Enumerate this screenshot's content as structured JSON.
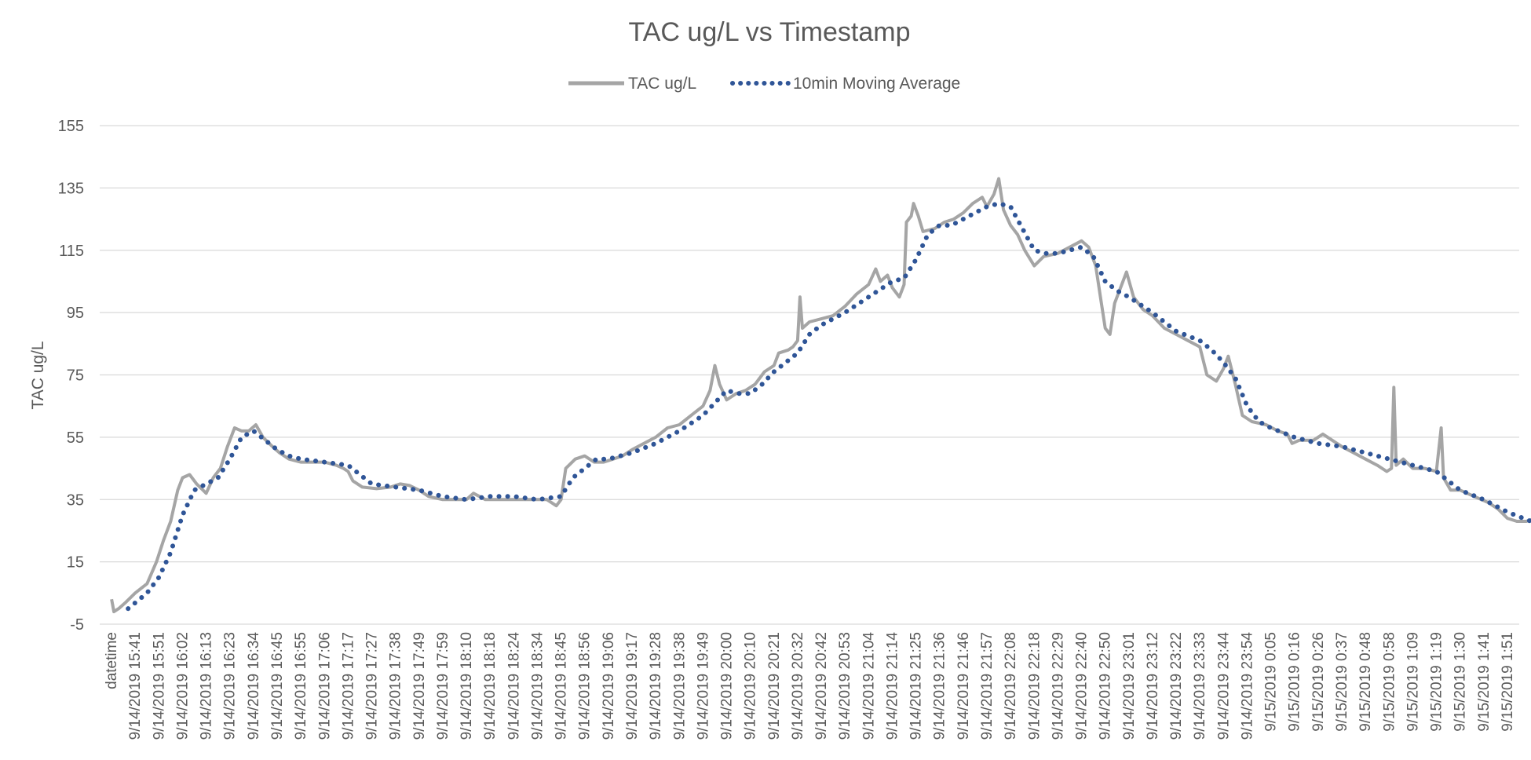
{
  "chart_data": {
    "type": "line",
    "title": "TAC ug/L vs Timestamp",
    "xlabel": "",
    "ylabel": "TAC ug/L",
    "ylim": [
      -5,
      155
    ],
    "yticks": [
      "-5",
      "15",
      "35",
      "55",
      "75",
      "95",
      "115",
      "135",
      "155"
    ],
    "grid": true,
    "legend_position": "top",
    "categories": [
      "datetime",
      "9/14/2019 15:41",
      "9/14/2019 15:51",
      "9/14/2019 16:02",
      "9/14/2019 16:13",
      "9/14/2019 16:23",
      "9/14/2019 16:34",
      "9/14/2019 16:45",
      "9/14/2019 16:55",
      "9/14/2019 17:06",
      "9/14/2019 17:17",
      "9/14/2019 17:27",
      "9/14/2019 17:38",
      "9/14/2019 17:49",
      "9/14/2019 17:59",
      "9/14/2019 18:10",
      "9/14/2019 18:18",
      "9/14/2019 18:24",
      "9/14/2019 18:34",
      "9/14/2019 18:45",
      "9/14/2019 18:56",
      "9/14/2019 19:06",
      "9/14/2019 19:17",
      "9/14/2019 19:28",
      "9/14/2019 19:38",
      "9/14/2019 19:49",
      "9/14/2019 20:00",
      "9/14/2019 20:10",
      "9/14/2019 20:21",
      "9/14/2019 20:32",
      "9/14/2019 20:42",
      "9/14/2019 20:53",
      "9/14/2019 21:04",
      "9/14/2019 21:14",
      "9/14/2019 21:25",
      "9/14/2019 21:36",
      "9/14/2019 21:46",
      "9/14/2019 21:57",
      "9/14/2019 22:08",
      "9/14/2019 22:18",
      "9/14/2019 22:29",
      "9/14/2019 22:40",
      "9/14/2019 22:50",
      "9/14/2019 23:01",
      "9/14/2019 23:12",
      "9/14/2019 23:22",
      "9/14/2019 23:33",
      "9/14/2019 23:44",
      "9/14/2019 23:54",
      "9/15/2019 0:05",
      "9/15/2019 0:16",
      "9/15/2019 0:26",
      "9/15/2019 0:37",
      "9/15/2019 0:48",
      "9/15/2019 0:58",
      "9/15/2019 1:09",
      "9/15/2019 1:19",
      "9/15/2019 1:30",
      "9/15/2019 1:41",
      "9/15/2019 1:51"
    ],
    "series": [
      {
        "name": "TAC ug/L",
        "color": "#a5a5a5",
        "style": "solid",
        "values": [
          [
            0,
            3
          ],
          [
            0.1,
            -1
          ],
          [
            0.3,
            0
          ],
          [
            0.6,
            2
          ],
          [
            1.0,
            5
          ],
          [
            1.5,
            8
          ],
          [
            1.9,
            15
          ],
          [
            2.2,
            22
          ],
          [
            2.5,
            28
          ],
          [
            2.8,
            38
          ],
          [
            3.0,
            42
          ],
          [
            3.3,
            43
          ],
          [
            3.6,
            40
          ],
          [
            4.0,
            37
          ],
          [
            4.3,
            42
          ],
          [
            4.6,
            45
          ],
          [
            4.9,
            52
          ],
          [
            5.2,
            58
          ],
          [
            5.5,
            57
          ],
          [
            5.8,
            57
          ],
          [
            6.1,
            59
          ],
          [
            6.4,
            55
          ],
          [
            6.8,
            52
          ],
          [
            7.1,
            50
          ],
          [
            7.5,
            48
          ],
          [
            8.0,
            47
          ],
          [
            8.5,
            47
          ],
          [
            9.0,
            47
          ],
          [
            9.5,
            46
          ],
          [
            9.8,
            45
          ],
          [
            10.0,
            44
          ],
          [
            10.2,
            41
          ],
          [
            10.6,
            39
          ],
          [
            11.2,
            38.5
          ],
          [
            11.8,
            39
          ],
          [
            12.2,
            40
          ],
          [
            12.6,
            39.5
          ],
          [
            13.0,
            38
          ],
          [
            13.4,
            36
          ],
          [
            14.0,
            35
          ],
          [
            14.6,
            35
          ],
          [
            15.0,
            35
          ],
          [
            15.3,
            37
          ],
          [
            15.8,
            35
          ],
          [
            16.4,
            35
          ],
          [
            17.0,
            35
          ],
          [
            17.5,
            35
          ],
          [
            18.0,
            35
          ],
          [
            18.4,
            35
          ],
          [
            18.8,
            33
          ],
          [
            19.0,
            35
          ],
          [
            19.2,
            45
          ],
          [
            19.6,
            48
          ],
          [
            20.0,
            49
          ],
          [
            20.4,
            47
          ],
          [
            20.8,
            47
          ],
          [
            21.2,
            48
          ],
          [
            21.6,
            49
          ],
          [
            22.0,
            51
          ],
          [
            22.5,
            53
          ],
          [
            23.0,
            55
          ],
          [
            23.5,
            58
          ],
          [
            24.0,
            59
          ],
          [
            24.5,
            62
          ],
          [
            25.0,
            65
          ],
          [
            25.3,
            70
          ],
          [
            25.5,
            78
          ],
          [
            25.7,
            72
          ],
          [
            26.0,
            67
          ],
          [
            26.4,
            69
          ],
          [
            26.8,
            70
          ],
          [
            27.2,
            72
          ],
          [
            27.6,
            76
          ],
          [
            28.0,
            78
          ],
          [
            28.2,
            82
          ],
          [
            28.6,
            83
          ],
          [
            28.8,
            84
          ],
          [
            29.0,
            86
          ],
          [
            29.1,
            100
          ],
          [
            29.2,
            90
          ],
          [
            29.5,
            92
          ],
          [
            30.0,
            93
          ],
          [
            30.5,
            94
          ],
          [
            31.0,
            97
          ],
          [
            31.5,
            101
          ],
          [
            32.0,
            104
          ],
          [
            32.3,
            109
          ],
          [
            32.5,
            105
          ],
          [
            32.8,
            107
          ],
          [
            33.0,
            103
          ],
          [
            33.3,
            100
          ],
          [
            33.5,
            104
          ],
          [
            33.6,
            124
          ],
          [
            33.8,
            126
          ],
          [
            33.9,
            130
          ],
          [
            34.1,
            126
          ],
          [
            34.3,
            121
          ],
          [
            34.8,
            122
          ],
          [
            35.2,
            124
          ],
          [
            35.6,
            125
          ],
          [
            36.0,
            127
          ],
          [
            36.4,
            130
          ],
          [
            36.8,
            132
          ],
          [
            37.0,
            129
          ],
          [
            37.3,
            133
          ],
          [
            37.5,
            138
          ],
          [
            37.7,
            128
          ],
          [
            38.0,
            123
          ],
          [
            38.3,
            120
          ],
          [
            38.6,
            115
          ],
          [
            39.0,
            110
          ],
          [
            39.4,
            113
          ],
          [
            40.0,
            114
          ],
          [
            40.5,
            116
          ],
          [
            41.0,
            118
          ],
          [
            41.3,
            116
          ],
          [
            41.6,
            110
          ],
          [
            41.8,
            100
          ],
          [
            42.0,
            90
          ],
          [
            42.2,
            88
          ],
          [
            42.4,
            98
          ],
          [
            42.7,
            104
          ],
          [
            42.9,
            108
          ],
          [
            43.2,
            100
          ],
          [
            43.6,
            96
          ],
          [
            44.0,
            94
          ],
          [
            44.5,
            90
          ],
          [
            45.0,
            88
          ],
          [
            45.5,
            86
          ],
          [
            46.0,
            84
          ],
          [
            46.3,
            75
          ],
          [
            46.7,
            73
          ],
          [
            47.0,
            77
          ],
          [
            47.2,
            81
          ],
          [
            47.5,
            72
          ],
          [
            47.8,
            62
          ],
          [
            48.2,
            60
          ],
          [
            48.8,
            59
          ],
          [
            49.3,
            57
          ],
          [
            49.7,
            56
          ],
          [
            49.9,
            53
          ],
          [
            50.2,
            54
          ],
          [
            50.8,
            54
          ],
          [
            51.2,
            56
          ],
          [
            51.6,
            54
          ],
          [
            52.0,
            52
          ],
          [
            52.5,
            50
          ],
          [
            53.0,
            48
          ],
          [
            53.5,
            46
          ],
          [
            53.9,
            44
          ],
          [
            54.1,
            45
          ],
          [
            54.2,
            71
          ],
          [
            54.3,
            46
          ],
          [
            54.6,
            48
          ],
          [
            55.0,
            45
          ],
          [
            55.5,
            45
          ],
          [
            56.0,
            44
          ],
          [
            56.2,
            58
          ],
          [
            56.3,
            42
          ],
          [
            56.6,
            38
          ],
          [
            57.0,
            38
          ],
          [
            57.6,
            36
          ],
          [
            58.2,
            34
          ],
          [
            58.6,
            32
          ],
          [
            59.0,
            29
          ],
          [
            59.4,
            28
          ],
          [
            59.8,
            28
          ],
          [
            60.2,
            29
          ],
          [
            60.5,
            26
          ]
        ]
      },
      {
        "name": "10min Moving Average",
        "color": "#2f5597",
        "style": "dotted",
        "values": [
          [
            0.7,
            0
          ],
          [
            1.5,
            5
          ],
          [
            2.0,
            10
          ],
          [
            2.5,
            18
          ],
          [
            3.0,
            30
          ],
          [
            3.5,
            38
          ],
          [
            4.0,
            40
          ],
          [
            4.5,
            42
          ],
          [
            5.0,
            48
          ],
          [
            5.5,
            55
          ],
          [
            6.0,
            57
          ],
          [
            6.5,
            54
          ],
          [
            7.0,
            51
          ],
          [
            7.5,
            49
          ],
          [
            8.0,
            48
          ],
          [
            9.0,
            47
          ],
          [
            10.0,
            46
          ],
          [
            10.5,
            43
          ],
          [
            11.0,
            40
          ],
          [
            12.0,
            39
          ],
          [
            13.0,
            38
          ],
          [
            13.5,
            37
          ],
          [
            14.0,
            36
          ],
          [
            15.0,
            35
          ],
          [
            16.0,
            36
          ],
          [
            17.0,
            36
          ],
          [
            18.0,
            35
          ],
          [
            19.0,
            36
          ],
          [
            19.5,
            42
          ],
          [
            20.0,
            45
          ],
          [
            20.5,
            48
          ],
          [
            21.0,
            48
          ],
          [
            22.0,
            50
          ],
          [
            23.0,
            53
          ],
          [
            24.0,
            57
          ],
          [
            25.0,
            62
          ],
          [
            25.5,
            66
          ],
          [
            26.0,
            70
          ],
          [
            26.5,
            69
          ],
          [
            27.0,
            69
          ],
          [
            27.5,
            72
          ],
          [
            28.0,
            76
          ],
          [
            29.0,
            82
          ],
          [
            29.5,
            88
          ],
          [
            30.0,
            91
          ],
          [
            31.0,
            95
          ],
          [
            32.0,
            100
          ],
          [
            33.0,
            105
          ],
          [
            33.5,
            106
          ],
          [
            34.0,
            112
          ],
          [
            34.5,
            120
          ],
          [
            35.0,
            123
          ],
          [
            35.5,
            123
          ],
          [
            36.0,
            125
          ],
          [
            36.5,
            127
          ],
          [
            37.0,
            129
          ],
          [
            37.5,
            130
          ],
          [
            38.0,
            129
          ],
          [
            38.5,
            122
          ],
          [
            39.0,
            115
          ],
          [
            39.5,
            114
          ],
          [
            40.0,
            114
          ],
          [
            41.0,
            116
          ],
          [
            41.5,
            113
          ],
          [
            42.0,
            105
          ],
          [
            42.5,
            102
          ],
          [
            43.0,
            100
          ],
          [
            44.0,
            95
          ],
          [
            45.0,
            89
          ],
          [
            46.0,
            86
          ],
          [
            46.5,
            83
          ],
          [
            47.0,
            79
          ],
          [
            47.5,
            74
          ],
          [
            48.0,
            65
          ],
          [
            48.5,
            60
          ],
          [
            49.0,
            58
          ],
          [
            50.0,
            55
          ],
          [
            51.0,
            53
          ],
          [
            52.0,
            52
          ],
          [
            53.0,
            50
          ],
          [
            54.0,
            48
          ],
          [
            55.0,
            46
          ],
          [
            56.0,
            44
          ],
          [
            56.5,
            41
          ],
          [
            57.0,
            38
          ],
          [
            58.0,
            35
          ],
          [
            59.0,
            31
          ],
          [
            60.0,
            28
          ],
          [
            60.5,
            27
          ]
        ]
      }
    ]
  }
}
